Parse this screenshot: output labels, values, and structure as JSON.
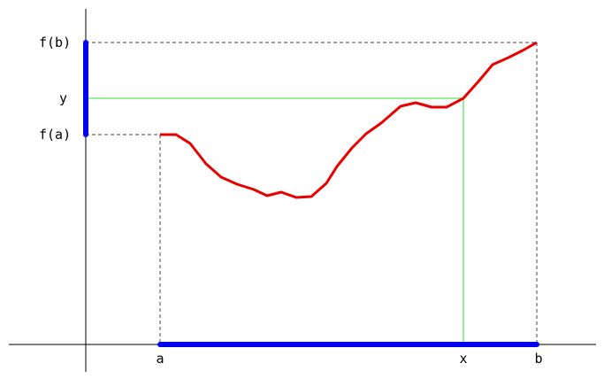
{
  "colors": {
    "curve": "#e60000",
    "interval": "#0000ee",
    "guide_dashed": "#444444",
    "guide_green": "#33dd33",
    "axes": "#000000"
  },
  "labels": {
    "x_a": "a",
    "x_x": "x",
    "x_b": "b",
    "y_fb": "f(b)",
    "y_y": "y",
    "y_fa": "f(a)"
  }
}
